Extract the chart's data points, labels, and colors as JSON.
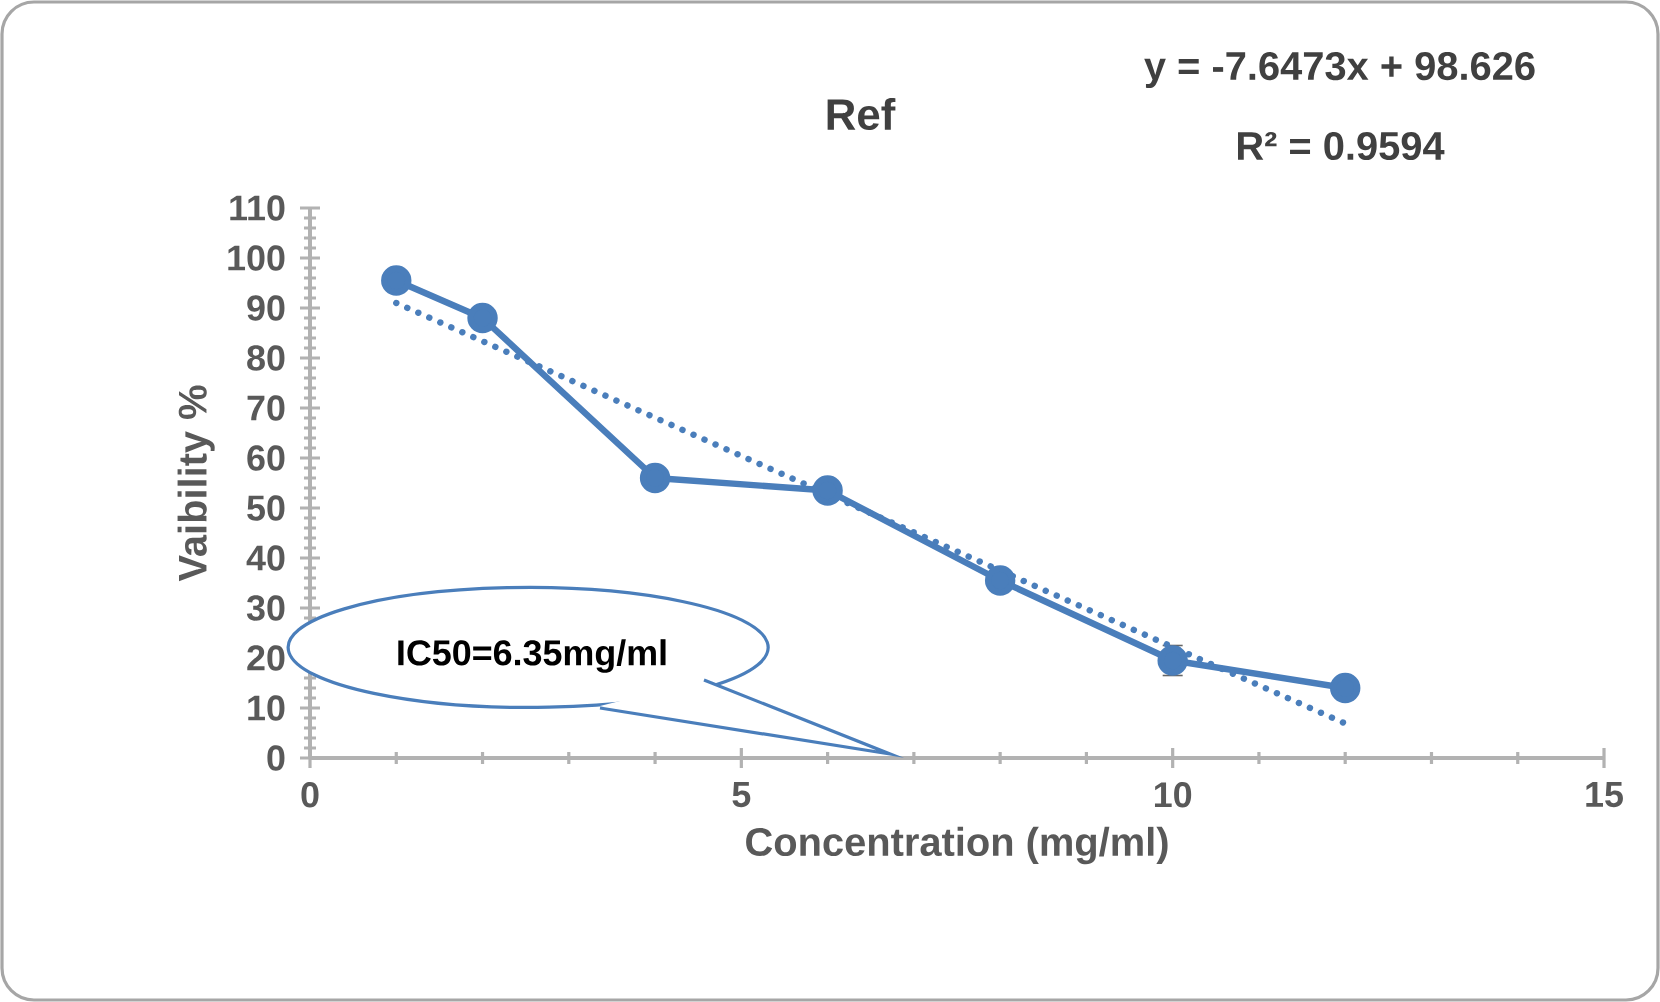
{
  "chart_data": {
    "type": "line",
    "title": "Ref",
    "xlabel": "Concentration (mg/ml)",
    "ylabel": "Vaibility %",
    "annotations": [
      "y = -7.6473x + 98.626",
      "R² = 0.9594",
      "IC50=6.35mg/ml"
    ],
    "xlim": [
      0,
      15
    ],
    "ylim": [
      0,
      110
    ],
    "xticks": [
      0,
      5,
      10,
      15
    ],
    "yticks": [
      0,
      10,
      20,
      30,
      40,
      50,
      60,
      70,
      80,
      90,
      100,
      110
    ],
    "grid": false,
    "series": [
      {
        "color": "#4a7ebb",
        "x": [
          1,
          2,
          4,
          6,
          8,
          10,
          12
        ],
        "values": [
          95.5,
          88,
          56,
          53.5,
          35.5,
          19.5,
          14
        ],
        "errors": [
          null,
          null,
          null,
          null,
          null,
          3,
          null
        ],
        "marker": "circle",
        "line_style": "solid"
      },
      {
        "color": "#4a7ebb",
        "x": [
          1,
          12
        ],
        "values": [
          91,
          6.9
        ],
        "marker": "none",
        "line_style": "dotted"
      }
    ]
  }
}
